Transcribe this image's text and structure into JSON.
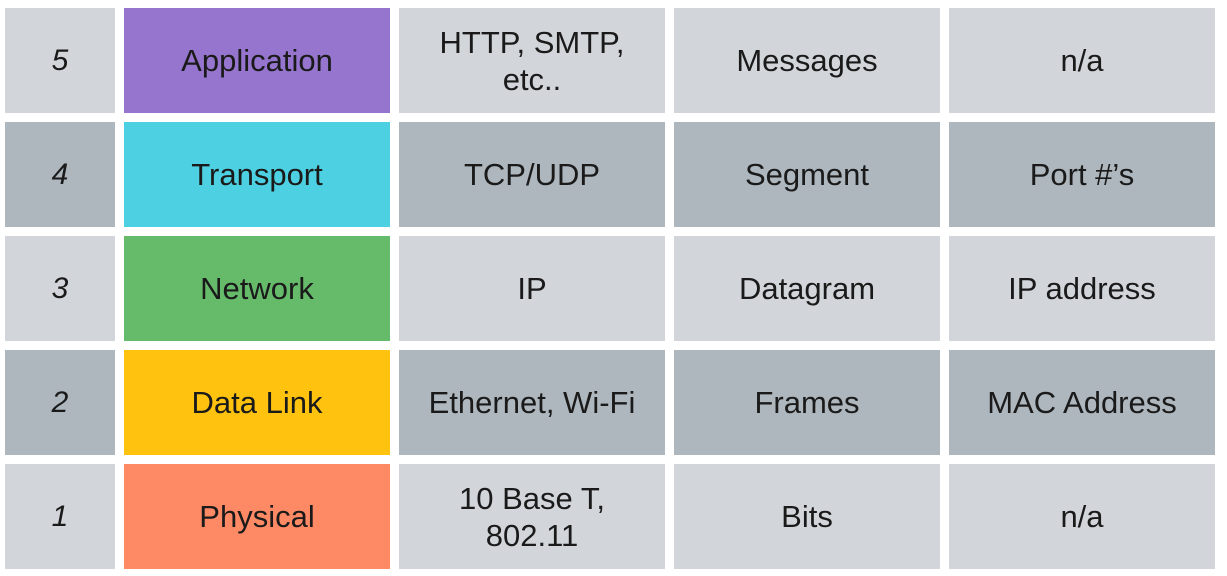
{
  "rows": [
    {
      "layer": "5",
      "name": "Application",
      "color": "#9575cd",
      "protocols": "HTTP, SMTP,\netc..",
      "pdu": "Messages",
      "addressing": "n/a",
      "shade": "light"
    },
    {
      "layer": "4",
      "name": "Transport",
      "color": "#4dd0e1",
      "protocols": "TCP/UDP",
      "pdu": "Segment",
      "addressing": "Port #’s",
      "shade": "dark"
    },
    {
      "layer": "3",
      "name": "Network",
      "color": "#66bb6a",
      "protocols": "IP",
      "pdu": "Datagram",
      "addressing": "IP address",
      "shade": "light"
    },
    {
      "layer": "2",
      "name": "Data Link",
      "color": "#ffc20e",
      "protocols": "Ethernet, Wi-Fi",
      "pdu": "Frames",
      "addressing": "MAC Address",
      "shade": "dark"
    },
    {
      "layer": "1",
      "name": "Physical",
      "color": "#fe8a65",
      "protocols": "10 Base T,\n802.11",
      "pdu": "Bits",
      "addressing": "n/a",
      "shade": "light"
    }
  ]
}
